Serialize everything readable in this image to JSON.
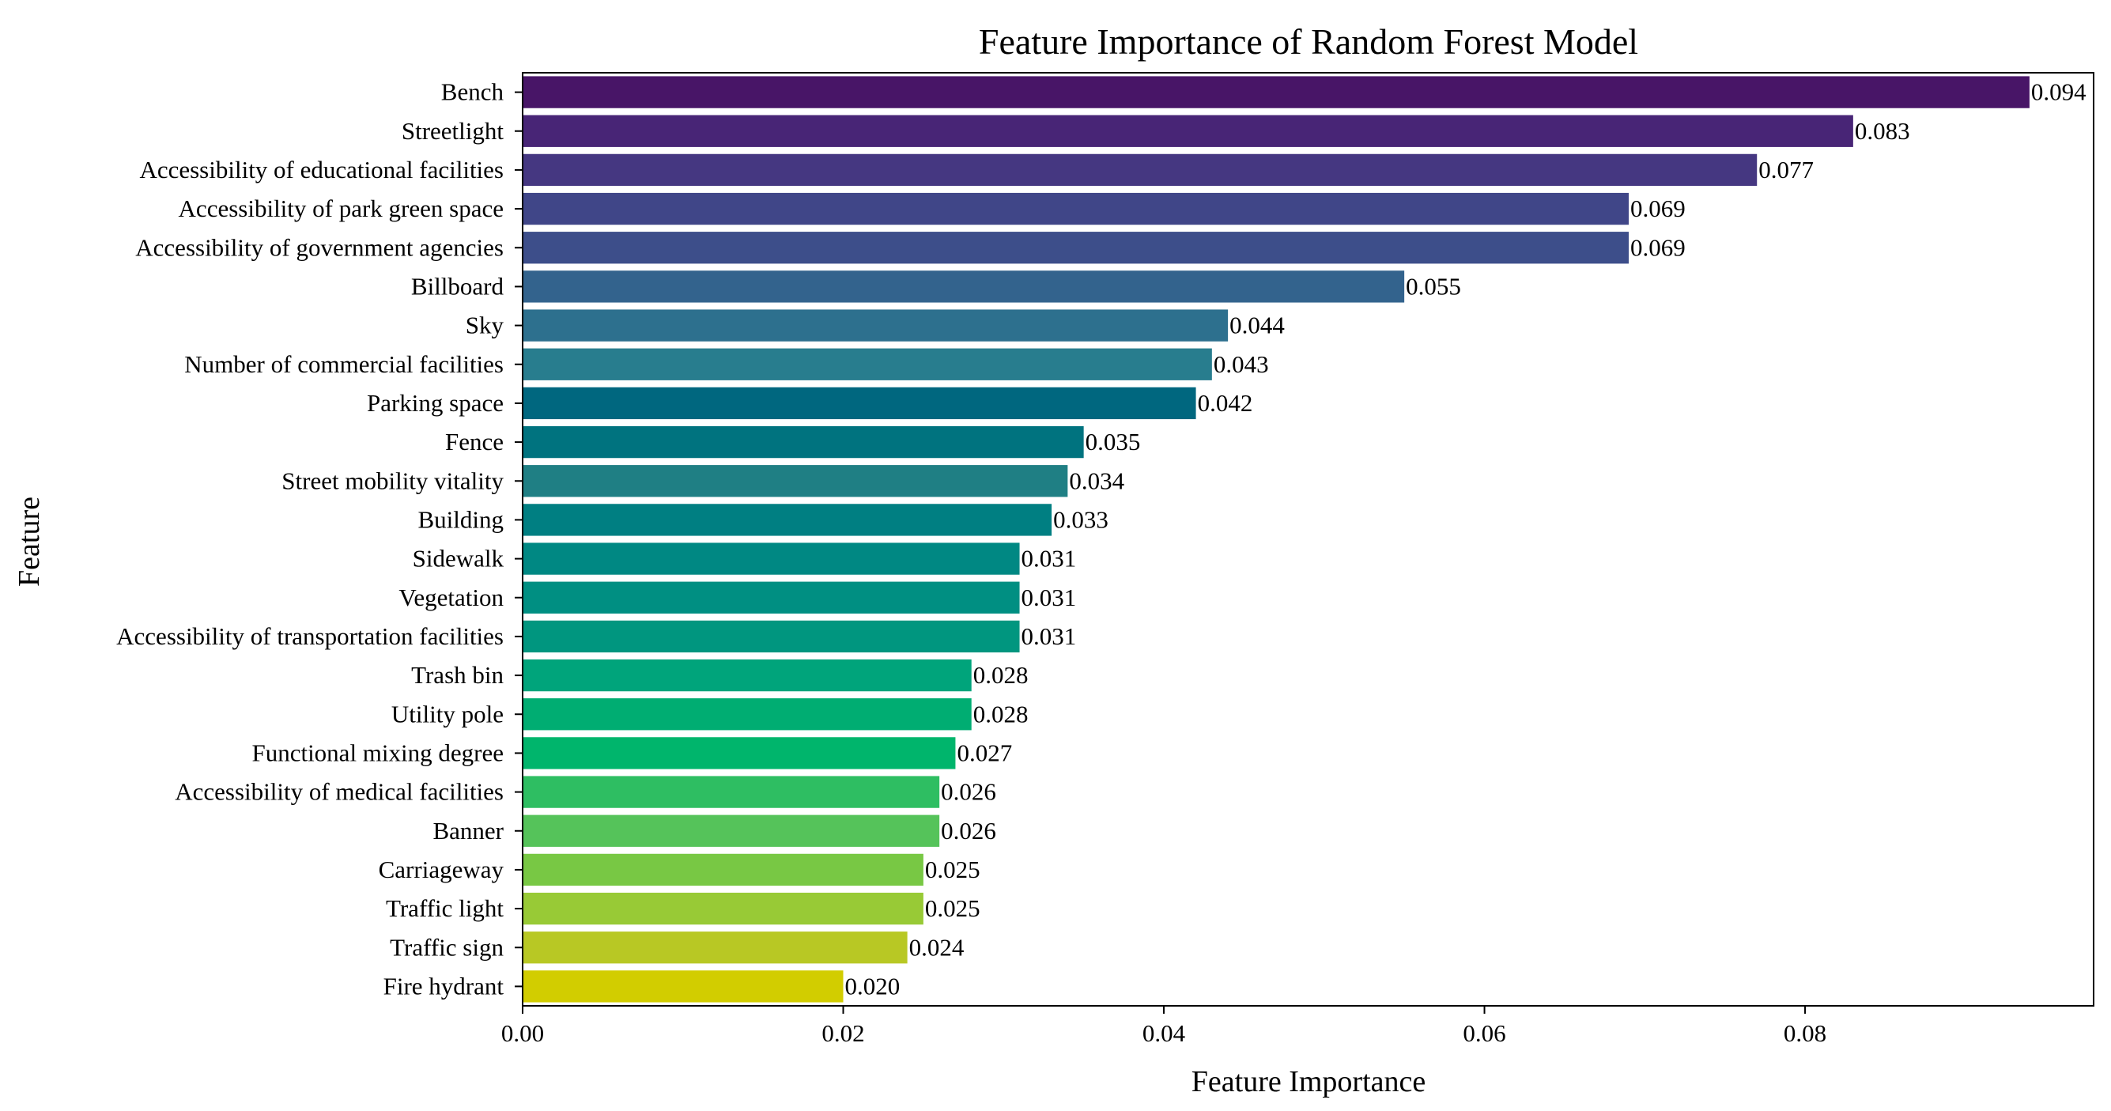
{
  "chart_data": {
    "type": "bar",
    "orientation": "horizontal",
    "title": "Feature Importance of Random Forest Model",
    "xlabel": "Feature Importance",
    "ylabel": "Feature",
    "xlim": [
      0,
      0.098
    ],
    "xticks": [
      0,
      0.02,
      0.04,
      0.06,
      0.08
    ],
    "xtick_labels": [
      "0.00",
      "0.02",
      "0.04",
      "0.06",
      "0.08"
    ],
    "grid": false,
    "legend": "none",
    "colormap": "viridis",
    "categories": [
      "Bench",
      "Streetlight",
      "Accessibility of educational facilities",
      "Accessibility of park green space",
      "Accessibility of government agencies",
      "Billboard",
      "Sky",
      "Number of commercial facilities",
      "Parking space",
      "Fence",
      "Street mobility vitality",
      "Building",
      "Sidewalk",
      "Vegetation",
      "Accessibility of transportation facilities",
      "Trash bin",
      "Utility pole",
      "Functional mixing degree",
      "Accessibility of medical facilities",
      "Banner",
      "Carriageway",
      "Traffic light",
      "Traffic sign",
      "Fire hydrant"
    ],
    "values": [
      0.094,
      0.083,
      0.077,
      0.069,
      0.069,
      0.055,
      0.044,
      0.043,
      0.042,
      0.035,
      0.034,
      0.033,
      0.031,
      0.031,
      0.031,
      0.028,
      0.028,
      0.027,
      0.026,
      0.026,
      0.025,
      0.025,
      0.024,
      0.02
    ],
    "value_labels": [
      "0.094",
      "0.083",
      "0.077",
      "0.069",
      "0.069",
      "0.055",
      "0.044",
      "0.043",
      "0.042",
      "0.035",
      "0.034",
      "0.033",
      "0.031",
      "0.031",
      "0.031",
      "0.028",
      "0.028",
      "0.027",
      "0.026",
      "0.026",
      "0.025",
      "0.025",
      "0.024",
      "0.020"
    ],
    "colors": [
      "#481567",
      "#482576",
      "#453781",
      "#404688",
      "#3d4e8a",
      "#33638d",
      "#2d708e",
      "#287d8e",
      "#00677f",
      "#00737f",
      "#1f7f84",
      "#007f82",
      "#008883",
      "#008f82",
      "#00967f",
      "#00a47b",
      "#00ad72",
      "#00b56c",
      "#2ebe62",
      "#55c35a",
      "#78c844",
      "#98ca36",
      "#b8c824",
      "#d2cd00"
    ]
  }
}
